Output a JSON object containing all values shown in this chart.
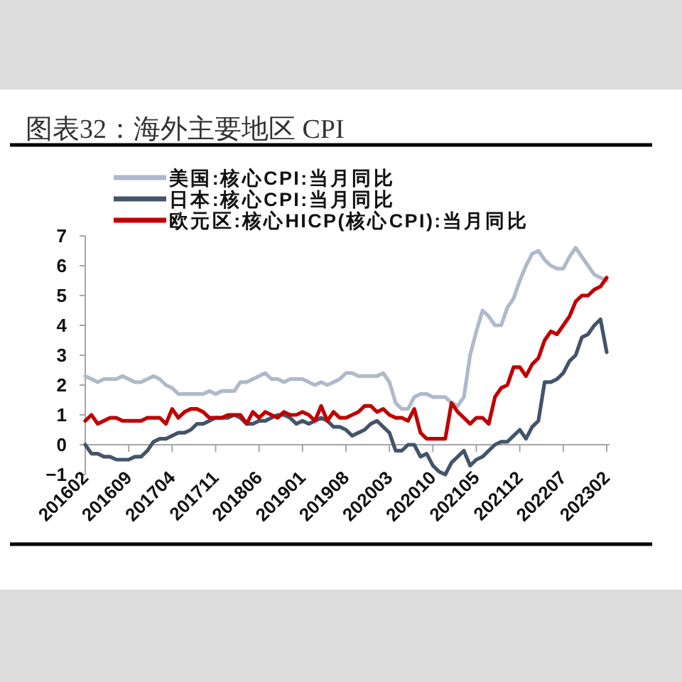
{
  "chart_data": {
    "type": "line",
    "title": "图表32：海外主要地区 CPI",
    "x": [
      "2016-02",
      "2016-03",
      "2016-04",
      "2016-05",
      "2016-06",
      "2016-07",
      "2016-08",
      "2016-09",
      "2016-10",
      "2016-11",
      "2016-12",
      "2017-01",
      "2017-02",
      "2017-03",
      "2017-04",
      "2017-05",
      "2017-06",
      "2017-07",
      "2017-08",
      "2017-09",
      "2017-10",
      "2017-11",
      "2017-12",
      "2018-01",
      "2018-02",
      "2018-03",
      "2018-04",
      "2018-05",
      "2018-06",
      "2018-07",
      "2018-08",
      "2018-09",
      "2018-10",
      "2018-11",
      "2018-12",
      "2019-01",
      "2019-02",
      "2019-03",
      "2019-04",
      "2019-05",
      "2019-06",
      "2019-07",
      "2019-08",
      "2019-09",
      "2019-10",
      "2019-11",
      "2019-12",
      "2020-01",
      "2020-02",
      "2020-03",
      "2020-04",
      "2020-05",
      "2020-06",
      "2020-07",
      "2020-08",
      "2020-09",
      "2020-10",
      "2020-11",
      "2020-12",
      "2021-01",
      "2021-02",
      "2021-03",
      "2021-04",
      "2021-05",
      "2021-06",
      "2021-07",
      "2021-08",
      "2021-09",
      "2021-10",
      "2021-11",
      "2021-12",
      "2022-01",
      "2022-02",
      "2022-03",
      "2022-04",
      "2022-05",
      "2022-06",
      "2022-07",
      "2022-08",
      "2022-09",
      "2022-10",
      "2022-11",
      "2022-12",
      "2023-01",
      "2023-02"
    ],
    "series": [
      {
        "name": "美国:核心CPI:当月同比",
        "color": "#aebacb",
        "values": [
          2.3,
          2.2,
          2.1,
          2.2,
          2.2,
          2.2,
          2.3,
          2.2,
          2.1,
          2.1,
          2.2,
          2.3,
          2.2,
          2.0,
          1.9,
          1.7,
          1.7,
          1.7,
          1.7,
          1.7,
          1.8,
          1.7,
          1.8,
          1.8,
          1.8,
          2.1,
          2.1,
          2.2,
          2.3,
          2.4,
          2.2,
          2.2,
          2.1,
          2.2,
          2.2,
          2.2,
          2.1,
          2.0,
          2.1,
          2.0,
          2.1,
          2.2,
          2.4,
          2.4,
          2.3,
          2.3,
          2.3,
          2.3,
          2.4,
          2.1,
          1.4,
          1.2,
          1.2,
          1.6,
          1.7,
          1.7,
          1.6,
          1.6,
          1.6,
          1.4,
          1.3,
          1.6,
          3.0,
          3.8,
          4.5,
          4.3,
          4.0,
          4.0,
          4.6,
          4.9,
          5.5,
          6.0,
          6.4,
          6.5,
          6.2,
          6.0,
          5.9,
          5.9,
          6.3,
          6.6,
          6.3,
          6.0,
          5.7,
          5.6,
          5.5
        ]
      },
      {
        "name": "日本:核心CPI:当月同比",
        "color": "#44546a",
        "values": [
          0.0,
          -0.3,
          -0.3,
          -0.4,
          -0.4,
          -0.5,
          -0.5,
          -0.5,
          -0.4,
          -0.4,
          -0.2,
          0.1,
          0.2,
          0.2,
          0.3,
          0.4,
          0.4,
          0.5,
          0.7,
          0.7,
          0.8,
          0.9,
          0.9,
          0.9,
          1.0,
          0.9,
          0.7,
          0.7,
          0.8,
          0.8,
          0.9,
          1.0,
          1.0,
          0.9,
          0.7,
          0.8,
          0.7,
          0.8,
          0.9,
          0.8,
          0.6,
          0.6,
          0.5,
          0.3,
          0.4,
          0.5,
          0.7,
          0.8,
          0.6,
          0.4,
          -0.2,
          -0.2,
          0.0,
          0.0,
          -0.4,
          -0.3,
          -0.7,
          -0.9,
          -1.0,
          -0.6,
          -0.4,
          -0.2,
          -0.7,
          -0.5,
          -0.4,
          -0.2,
          0.0,
          0.1,
          0.1,
          0.3,
          0.5,
          0.2,
          0.6,
          0.8,
          2.1,
          2.1,
          2.2,
          2.4,
          2.8,
          3.0,
          3.6,
          3.7,
          4.0,
          4.2,
          3.1
        ]
      },
      {
        "name": "欧元区:核心HICP(核心CPI):当月同比",
        "color": "#c00000",
        "values": [
          0.8,
          1.0,
          0.7,
          0.8,
          0.9,
          0.9,
          0.8,
          0.8,
          0.8,
          0.8,
          0.9,
          0.9,
          0.9,
          0.7,
          1.2,
          0.9,
          1.1,
          1.2,
          1.2,
          1.1,
          0.9,
          0.9,
          0.9,
          1.0,
          1.0,
          1.0,
          0.7,
          1.1,
          0.9,
          1.1,
          1.0,
          0.9,
          1.1,
          1.0,
          1.0,
          1.1,
          1.0,
          0.8,
          1.3,
          0.8,
          1.1,
          0.9,
          0.9,
          1.0,
          1.1,
          1.3,
          1.3,
          1.1,
          1.2,
          1.0,
          0.9,
          0.9,
          0.8,
          1.2,
          0.4,
          0.2,
          0.2,
          0.2,
          0.2,
          1.4,
          1.1,
          0.9,
          0.7,
          0.9,
          0.9,
          0.7,
          1.6,
          1.9,
          2.0,
          2.6,
          2.6,
          2.3,
          2.7,
          2.9,
          3.5,
          3.8,
          3.7,
          4.0,
          4.3,
          4.8,
          5.0,
          5.0,
          5.2,
          5.3,
          5.6
        ]
      }
    ],
    "xlim": [
      "2016-02",
      "2023-02"
    ],
    "xticks": [
      {
        "value": "2016-02",
        "label": "201602"
      },
      {
        "value": "2016-09",
        "label": "201609"
      },
      {
        "value": "2017-04",
        "label": "201704"
      },
      {
        "value": "2017-11",
        "label": "201711"
      },
      {
        "value": "2018-06",
        "label": "201806"
      },
      {
        "value": "2019-01",
        "label": "201901"
      },
      {
        "value": "2019-08",
        "label": "201908"
      },
      {
        "value": "2020-03",
        "label": "202003"
      },
      {
        "value": "2020-10",
        "label": "202010"
      },
      {
        "value": "2021-05",
        "label": "202105"
      },
      {
        "value": "2021-12",
        "label": "202112"
      },
      {
        "value": "2022-07",
        "label": "202207"
      },
      {
        "value": "2023-02",
        "label": "202302"
      }
    ],
    "ylim": [
      -1,
      7
    ],
    "yticks": [
      -1,
      0,
      1,
      2,
      3,
      4,
      5,
      6,
      7
    ],
    "legend": "top left"
  }
}
